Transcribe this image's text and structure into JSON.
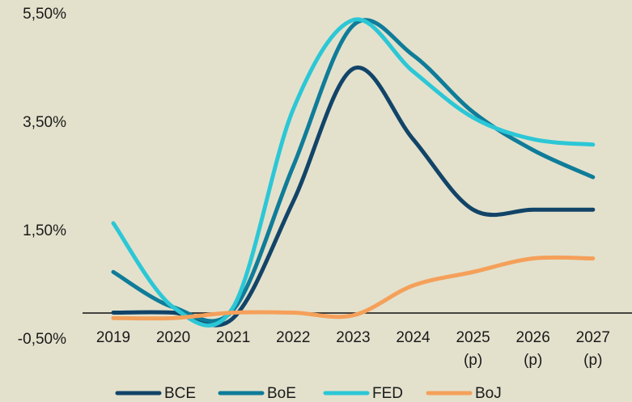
{
  "chart_data": {
    "type": "line",
    "categories": [
      "2019",
      "2020",
      "2021",
      "2022",
      "2023",
      "2024",
      "2025\n(p)",
      "2026\n(p)",
      "2027\n(p)"
    ],
    "series": [
      {
        "name": "BCE",
        "color": "#124468",
        "values": [
          0,
          0,
          -0.1,
          2.05,
          4.5,
          3.2,
          1.9,
          1.9,
          1.9
        ]
      },
      {
        "name": "BoE",
        "color": "#0f7c99",
        "values": [
          0.75,
          0.1,
          0.05,
          2.7,
          5.3,
          4.75,
          3.7,
          3.0,
          2.5
        ]
      },
      {
        "name": "FED",
        "color": "#2cc7d6",
        "values": [
          1.65,
          0.1,
          0.1,
          3.75,
          5.4,
          4.45,
          3.6,
          3.2,
          3.1
        ]
      },
      {
        "name": "BoJ",
        "color": "#f5a05a",
        "values": [
          -0.1,
          -0.1,
          0,
          0,
          -0.05,
          0.5,
          0.75,
          1.0,
          1.0
        ]
      }
    ],
    "ylim": [
      -0.5,
      5.5
    ],
    "yticks": [
      {
        "value": -0.5,
        "label": "-0,50%"
      },
      {
        "value": 1.5,
        "label": "1,50%"
      },
      {
        "value": 3.5,
        "label": "3,50%"
      },
      {
        "value": 5.5,
        "label": "5,50%"
      }
    ]
  }
}
